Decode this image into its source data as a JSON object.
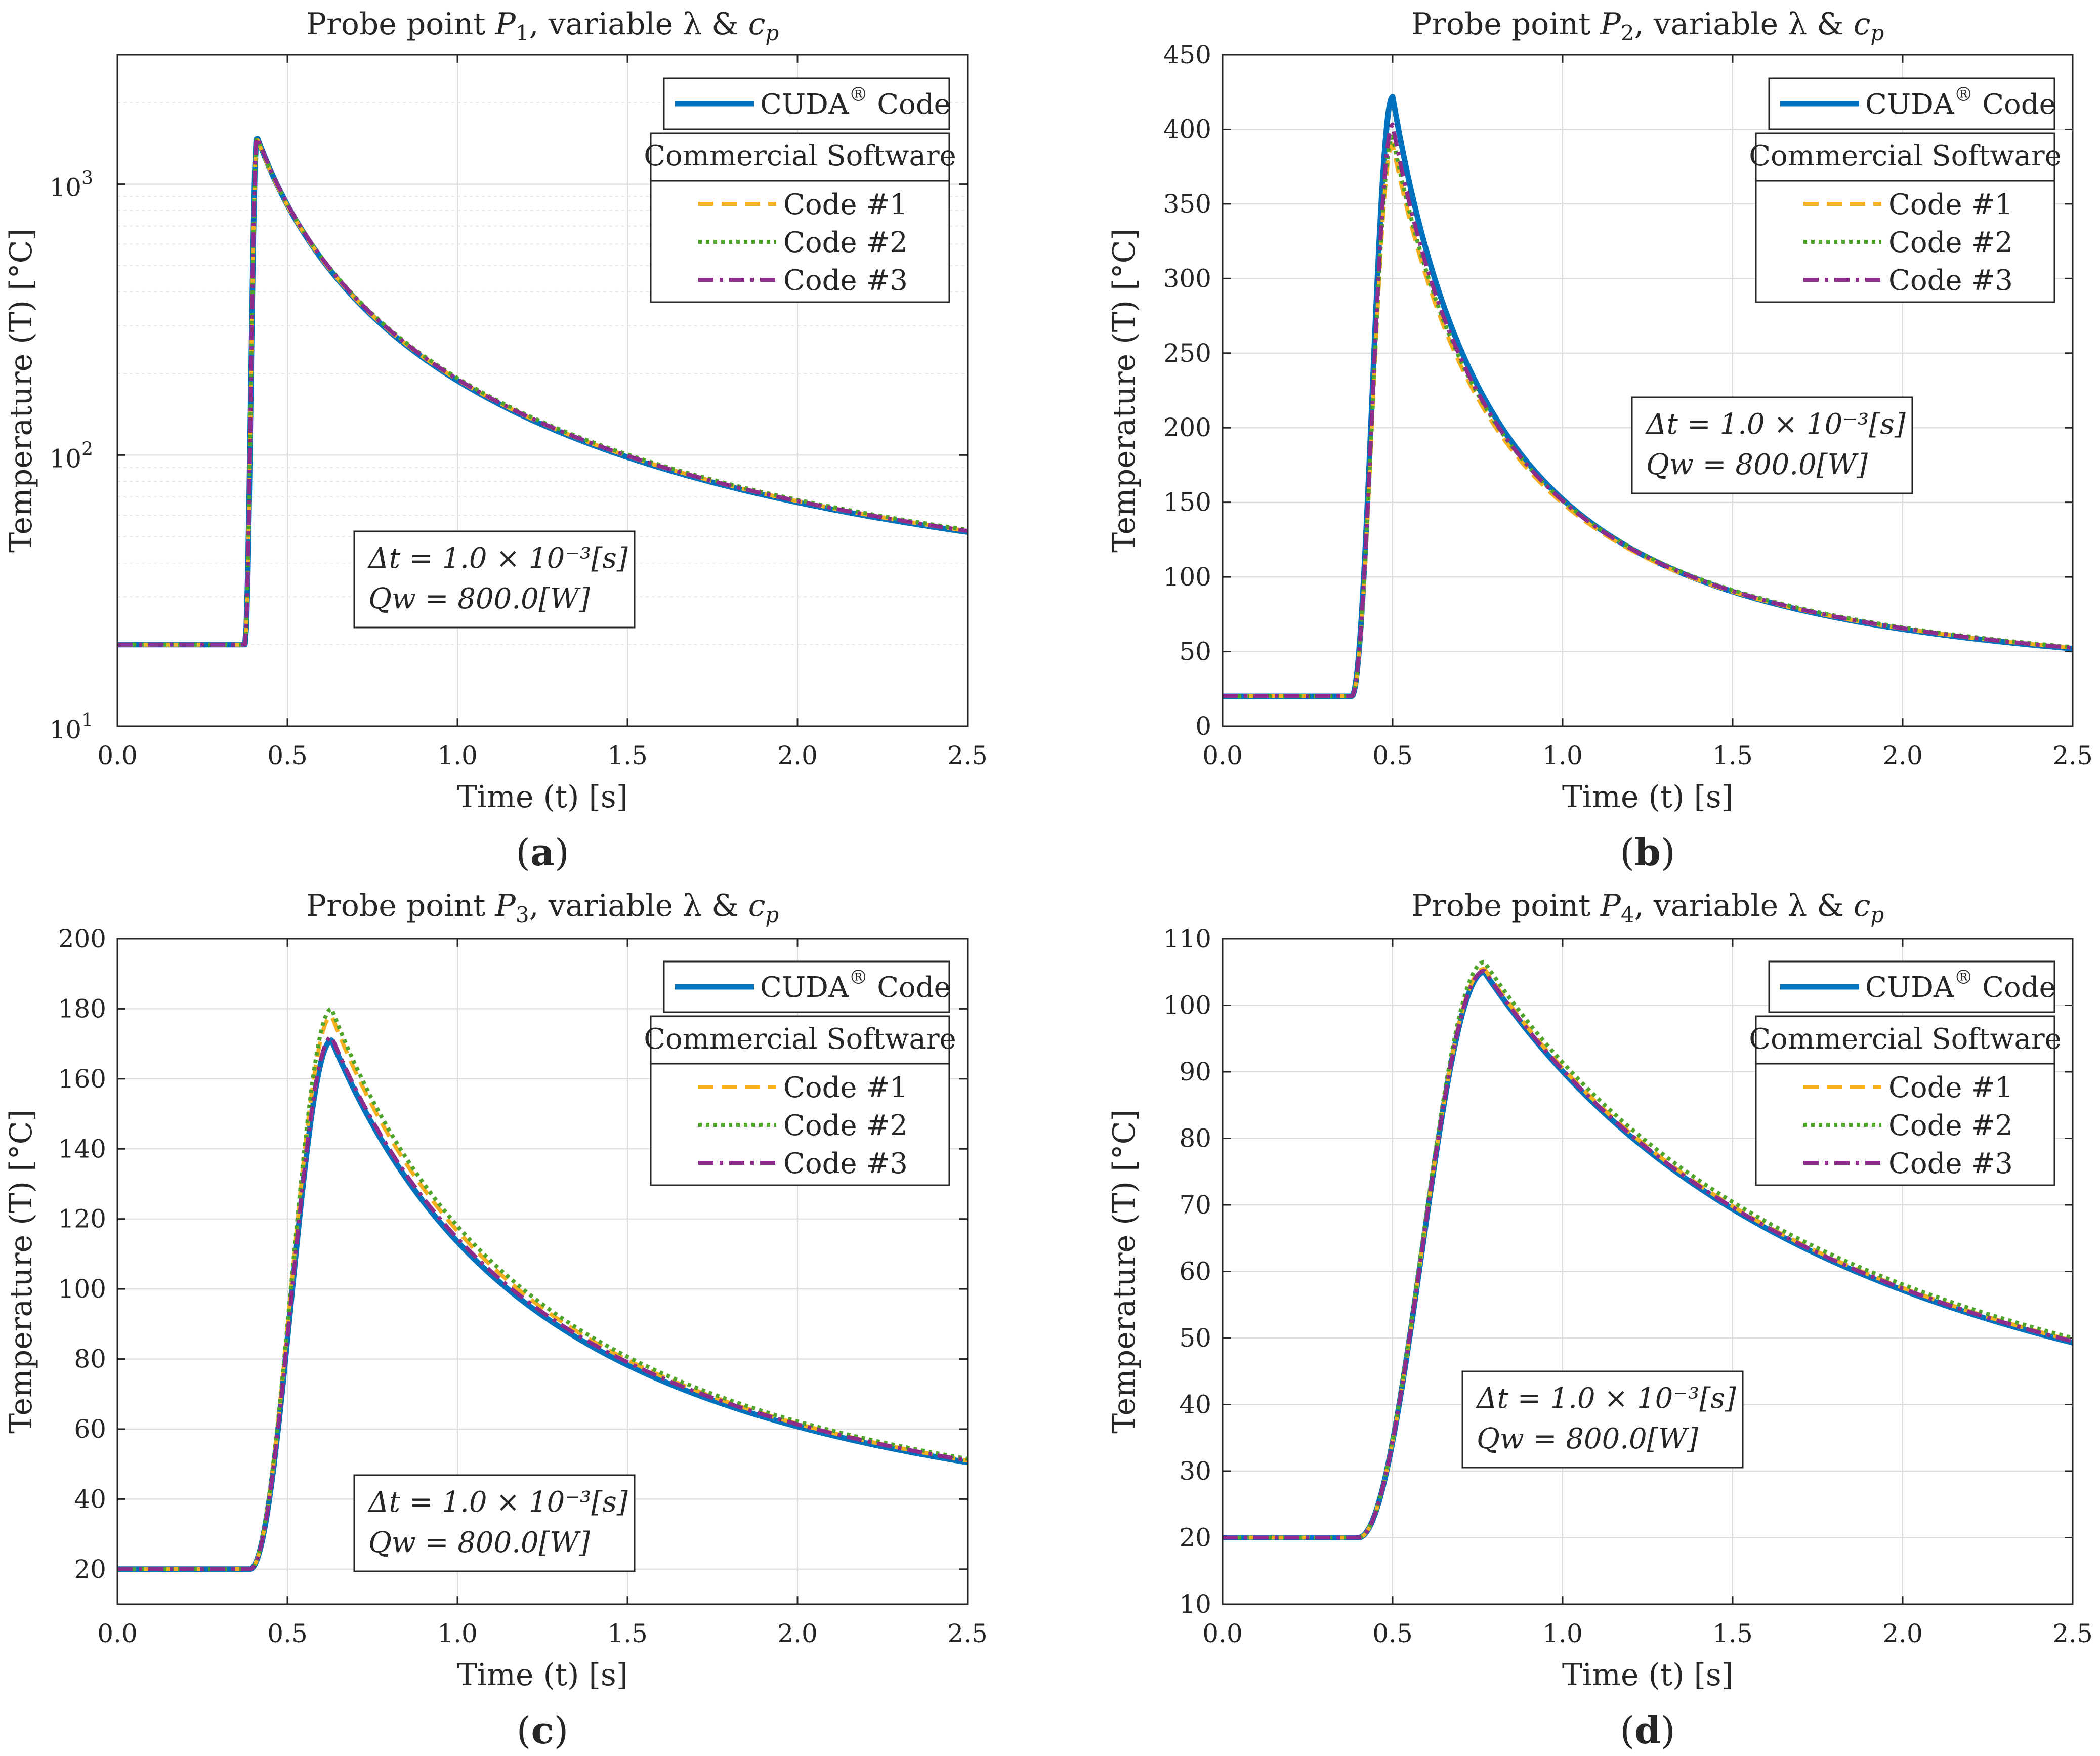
{
  "chart_data": [
    {
      "type": "line",
      "panel_label": "a",
      "title": "Probe point P1, variable λ & cp",
      "title_parts": {
        "prefix": "Probe point ",
        "var": "P",
        "sub": "1",
        "mid": ", variable λ & ",
        "cvar": "c",
        "csub": "p"
      },
      "xlabel": "Time (t) [s]",
      "ylabel": "Temperature (T) [°C]",
      "xlim": [
        0,
        2.5
      ],
      "ylim": [
        10,
        3000
      ],
      "yscale": "log",
      "xticks": [
        "0.0",
        "0.5",
        "1.0",
        "1.5",
        "2.0",
        "2.5"
      ],
      "yticks": [
        {
          "base": "10",
          "exp": "1",
          "value": 10
        },
        {
          "base": "10",
          "exp": "2",
          "value": 100
        },
        {
          "base": "10",
          "exp": "3",
          "value": 1000
        }
      ],
      "peak_t": 0.41,
      "onset": 0.375,
      "series": [
        {
          "name": "CUDA® Code",
          "color": "#0072BD",
          "dash": "solid",
          "peak": 1500,
          "final": 52
        },
        {
          "name": "Code #1",
          "color": "#F6B01F",
          "dash": "dashed",
          "peak": 1480,
          "final": 52.5
        },
        {
          "name": "Code #2",
          "color": "#4FA52B",
          "dash": "dotted",
          "peak": 1490,
          "final": 53
        },
        {
          "name": "Code #3",
          "color": "#8E2C8C",
          "dash": "dashdot",
          "peak": 1510,
          "final": 52.5
        }
      ],
      "legend": {
        "cuda": "CUDA",
        "cuda_sup": "®",
        "cuda_tail": " Code",
        "header": "Commercial Software",
        "items": [
          "Code #1",
          "Code #2",
          "Code #3"
        ]
      },
      "annotation": {
        "line1": "Δt = 1.0 × 10⁻³[s]",
        "line2": "Qw = 800.0[W]"
      }
    },
    {
      "type": "line",
      "panel_label": "b",
      "title": "Probe point P2, variable λ & cp",
      "title_parts": {
        "prefix": "Probe point ",
        "var": "P",
        "sub": "2",
        "mid": ", variable λ & ",
        "cvar": "c",
        "csub": "p"
      },
      "xlabel": "Time (t) [s]",
      "ylabel": "Temperature (T) [°C]",
      "xlim": [
        0,
        2.5
      ],
      "ylim": [
        0,
        450
      ],
      "yscale": "linear",
      "xticks": [
        "0.0",
        "0.5",
        "1.0",
        "1.5",
        "2.0",
        "2.5"
      ],
      "yticks": [
        "0",
        "50",
        "100",
        "150",
        "200",
        "250",
        "300",
        "350",
        "400",
        "450"
      ],
      "peak_t": 0.5,
      "onset": 0.38,
      "series": [
        {
          "name": "CUDA® Code",
          "color": "#0072BD",
          "dash": "solid",
          "peak": 422,
          "final": 52
        },
        {
          "name": "Code #1",
          "color": "#F6B01F",
          "dash": "dashed",
          "peak": 390,
          "final": 52.5
        },
        {
          "name": "Code #2",
          "color": "#4FA52B",
          "dash": "dotted",
          "peak": 395,
          "final": 53
        },
        {
          "name": "Code #3",
          "color": "#8E2C8C",
          "dash": "dashdot",
          "peak": 403,
          "final": 52.5
        }
      ],
      "legend": {
        "cuda": "CUDA",
        "cuda_sup": "®",
        "cuda_tail": " Code",
        "header": "Commercial Software",
        "items": [
          "Code #1",
          "Code #2",
          "Code #3"
        ]
      },
      "annotation": {
        "line1": "Δt = 1.0 × 10⁻³[s]",
        "line2": "Qw = 800.0[W]"
      }
    },
    {
      "type": "line",
      "panel_label": "c",
      "title": "Probe point P3, variable λ & cp",
      "title_parts": {
        "prefix": "Probe point ",
        "var": "P",
        "sub": "3",
        "mid": ", variable λ & ",
        "cvar": "c",
        "csub": "p"
      },
      "xlabel": "Time (t) [s]",
      "ylabel": "Temperature (T) [°C]",
      "xlim": [
        0,
        2.5
      ],
      "ylim": [
        10,
        200
      ],
      "yscale": "linear",
      "xticks": [
        "0.0",
        "0.5",
        "1.0",
        "1.5",
        "2.0",
        "2.5"
      ],
      "yticks": [
        "20",
        "40",
        "60",
        "80",
        "100",
        "120",
        "140",
        "160",
        "180",
        "200"
      ],
      "peak_t": 0.63,
      "onset": 0.39,
      "series": [
        {
          "name": "CUDA® Code",
          "color": "#0072BD",
          "dash": "solid",
          "peak": 171,
          "final": 50.5
        },
        {
          "name": "Code #1",
          "color": "#F6B01F",
          "dash": "dashed",
          "peak": 178,
          "final": 51
        },
        {
          "name": "Code #2",
          "color": "#4FA52B",
          "dash": "dotted",
          "peak": 180,
          "final": 51.5
        },
        {
          "name": "Code #3",
          "color": "#8E2C8C",
          "dash": "dashdot",
          "peak": 172,
          "final": 51
        }
      ],
      "legend": {
        "cuda": "CUDA",
        "cuda_sup": "®",
        "cuda_tail": " Code",
        "header": "Commercial Software",
        "items": [
          "Code #1",
          "Code #2",
          "Code #3"
        ]
      },
      "annotation": {
        "line1": "Δt = 1.0 × 10⁻³[s]",
        "line2": "Qw = 800.0[W]"
      }
    },
    {
      "type": "line",
      "panel_label": "d",
      "title": "Probe point P4, variable λ & cp",
      "title_parts": {
        "prefix": "Probe point ",
        "var": "P",
        "sub": "4",
        "mid": ", variable λ & ",
        "cvar": "c",
        "csub": "p"
      },
      "xlabel": "Time (t) [s]",
      "ylabel": "Temperature (T) [°C]",
      "xlim": [
        0,
        2.5
      ],
      "ylim": [
        10,
        110
      ],
      "yscale": "linear",
      "xticks": [
        "0.0",
        "0.5",
        "1.0",
        "1.5",
        "2.0",
        "2.5"
      ],
      "yticks": [
        "10",
        "20",
        "30",
        "40",
        "50",
        "60",
        "70",
        "80",
        "90",
        "100",
        "110"
      ],
      "peak_t": 0.77,
      "onset": 0.4,
      "series": [
        {
          "name": "CUDA® Code",
          "color": "#0072BD",
          "dash": "solid",
          "peak": 105,
          "final": 49.3
        },
        {
          "name": "Code #1",
          "color": "#F6B01F",
          "dash": "dashed",
          "peak": 105.5,
          "final": 49.6
        },
        {
          "name": "Code #2",
          "color": "#4FA52B",
          "dash": "dotted",
          "peak": 106.5,
          "final": 50
        },
        {
          "name": "Code #3",
          "color": "#8E2C8C",
          "dash": "dashdot",
          "peak": 105.2,
          "final": 49.5
        }
      ],
      "legend": {
        "cuda": "CUDA",
        "cuda_sup": "®",
        "cuda_tail": " Code",
        "header": "Commercial Software",
        "items": [
          "Code #1",
          "Code #2",
          "Code #3"
        ]
      },
      "annotation": {
        "line1": "Δt = 1.0 × 10⁻³[s]",
        "line2": "Qw = 800.0[W]"
      }
    }
  ]
}
